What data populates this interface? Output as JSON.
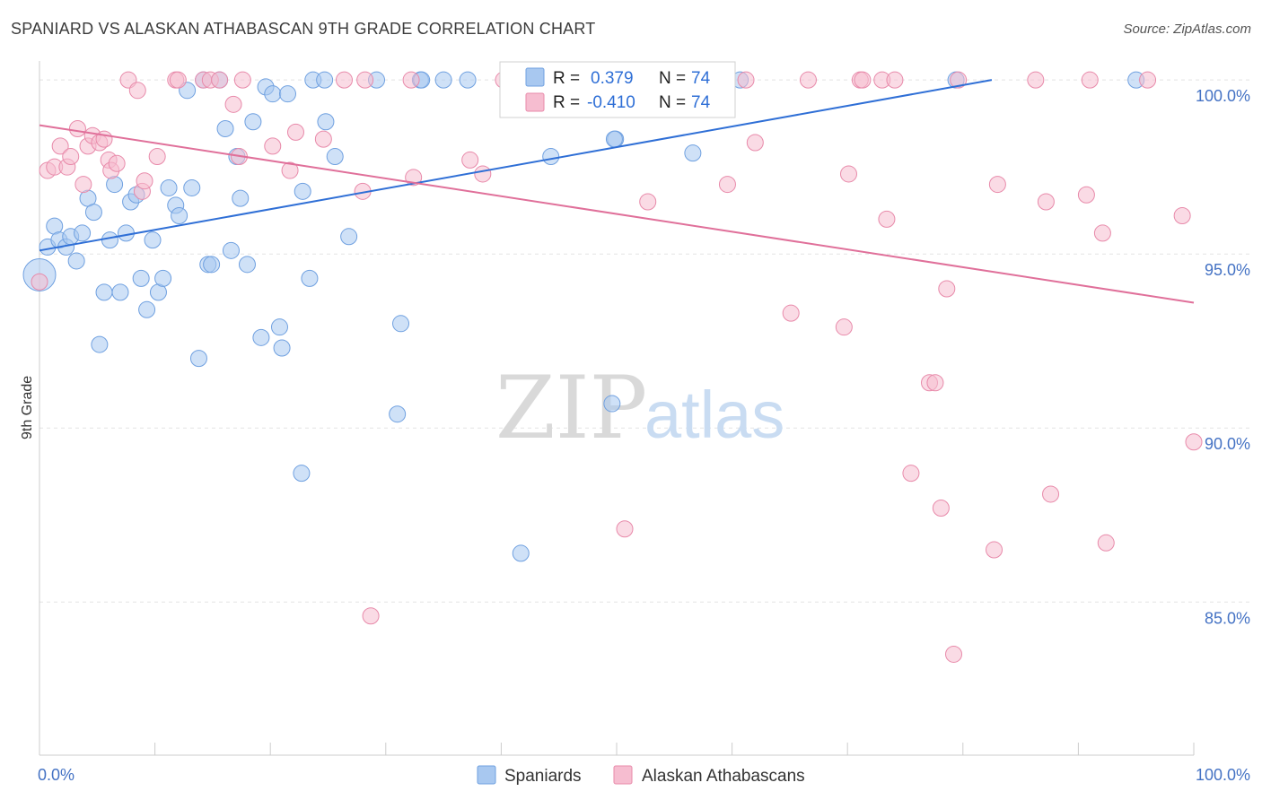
{
  "title": "SPANIARD VS ALASKAN ATHABASCAN 9TH GRADE CORRELATION CHART",
  "source": "Source: ZipAtlas.com",
  "watermark": {
    "zip": "ZIP",
    "atlas": "atlas"
  },
  "legend_box": {
    "rows": [
      {
        "r_label": "R =",
        "r_value": "0.379",
        "n_label": "N =",
        "n_value": "74",
        "color": "#a8c8f0",
        "border": "#6fa0e0"
      },
      {
        "r_label": "R =",
        "r_value": "-0.410",
        "n_label": "N =",
        "n_value": "74",
        "color": "#f6bdd0",
        "border": "#e88aaa"
      }
    ]
  },
  "chart_data": {
    "type": "scatter",
    "title": "SPANIARD VS ALASKAN ATHABASCAN 9TH GRADE CORRELATION CHART",
    "xlabel": "",
    "ylabel": "9th Grade",
    "xlim": [
      0,
      100
    ],
    "ylim": [
      80.6,
      100.7
    ],
    "x_tick_labels": [
      {
        "value": 0,
        "label": "0.0%"
      },
      {
        "value": 100,
        "label": "100.0%"
      }
    ],
    "y_tick_labels": [
      {
        "value": 100,
        "label": "100.0%"
      },
      {
        "value": 95,
        "label": "95.0%"
      },
      {
        "value": 90,
        "label": "90.0%"
      },
      {
        "value": 85,
        "label": "85.0%"
      }
    ],
    "grid": true,
    "legend_placement": "bottom",
    "series": [
      {
        "name": "Spaniards",
        "color": "#a8c8f0",
        "stroke": "#6fa0e0",
        "trend_color": "#2f6fd6",
        "trend": [
          [
            0,
            95.1
          ],
          [
            82.5,
            100.0
          ]
        ],
        "points": [
          [
            0,
            94.4
          ],
          [
            0.7,
            95.2
          ],
          [
            1.3,
            95.8
          ],
          [
            1.7,
            95.4
          ],
          [
            2.3,
            95.2
          ],
          [
            2.7,
            95.5
          ],
          [
            3.2,
            94.8
          ],
          [
            3.7,
            95.6
          ],
          [
            4.2,
            96.6
          ],
          [
            4.7,
            96.2
          ],
          [
            5.2,
            92.4
          ],
          [
            5.6,
            93.9
          ],
          [
            6.1,
            95.4
          ],
          [
            6.5,
            97.0
          ],
          [
            7.0,
            93.9
          ],
          [
            7.5,
            95.6
          ],
          [
            7.9,
            96.5
          ],
          [
            8.4,
            96.7
          ],
          [
            8.8,
            94.3
          ],
          [
            9.3,
            93.4
          ],
          [
            9.8,
            95.4
          ],
          [
            10.3,
            93.9
          ],
          [
            10.7,
            94.3
          ],
          [
            11.2,
            96.9
          ],
          [
            11.8,
            96.4
          ],
          [
            12.1,
            96.1
          ],
          [
            12.8,
            99.7
          ],
          [
            13.2,
            96.9
          ],
          [
            13.8,
            92.0
          ],
          [
            14.2,
            100.0
          ],
          [
            14.6,
            94.7
          ],
          [
            14.9,
            94.7
          ],
          [
            15.6,
            100.0
          ],
          [
            16.1,
            98.6
          ],
          [
            16.6,
            95.1
          ],
          [
            17.1,
            97.8
          ],
          [
            17.4,
            96.6
          ],
          [
            18.0,
            94.7
          ],
          [
            18.5,
            98.8
          ],
          [
            19.2,
            92.6
          ],
          [
            19.6,
            99.8
          ],
          [
            20.2,
            99.6
          ],
          [
            20.8,
            92.9
          ],
          [
            21.0,
            92.3
          ],
          [
            21.5,
            99.6
          ],
          [
            22.7,
            88.7
          ],
          [
            22.8,
            96.8
          ],
          [
            23.4,
            94.3
          ],
          [
            23.7,
            100.0
          ],
          [
            24.7,
            100.0
          ],
          [
            24.8,
            98.8
          ],
          [
            25.6,
            97.8
          ],
          [
            26.8,
            95.5
          ],
          [
            29.2,
            100.0
          ],
          [
            31.3,
            93.0
          ],
          [
            31.0,
            90.4
          ],
          [
            33.0,
            100.0
          ],
          [
            33.1,
            100.0
          ],
          [
            35.0,
            100.0
          ],
          [
            37.1,
            100.0
          ],
          [
            41.0,
            100.0
          ],
          [
            41.7,
            86.4
          ],
          [
            44.0,
            100.0
          ],
          [
            44.3,
            97.8
          ],
          [
            49.9,
            98.3
          ],
          [
            49.8,
            98.3
          ],
          [
            49.6,
            90.7
          ],
          [
            52.0,
            100.0
          ],
          [
            53.6,
            100.0
          ],
          [
            56.6,
            97.9
          ],
          [
            58.0,
            100.0
          ],
          [
            60.7,
            100.0
          ],
          [
            79.4,
            100.0
          ],
          [
            95.0,
            100.0
          ]
        ]
      },
      {
        "name": "Alaskan Athabascans",
        "color": "#f6bdd0",
        "stroke": "#e88aaa",
        "trend_color": "#e0709a",
        "trend": [
          [
            0,
            98.7
          ],
          [
            100,
            93.6
          ]
        ],
        "points": [
          [
            0,
            94.2
          ],
          [
            0.7,
            97.4
          ],
          [
            1.3,
            97.5
          ],
          [
            1.8,
            98.1
          ],
          [
            2.4,
            97.5
          ],
          [
            2.7,
            97.8
          ],
          [
            3.3,
            98.6
          ],
          [
            3.8,
            97.0
          ],
          [
            4.2,
            98.1
          ],
          [
            4.6,
            98.4
          ],
          [
            5.2,
            98.2
          ],
          [
            5.6,
            98.3
          ],
          [
            6.0,
            97.7
          ],
          [
            6.2,
            97.4
          ],
          [
            6.7,
            97.6
          ],
          [
            7.7,
            100.0
          ],
          [
            8.5,
            99.7
          ],
          [
            8.9,
            96.8
          ],
          [
            9.1,
            97.1
          ],
          [
            10.2,
            97.8
          ],
          [
            11.8,
            100.0
          ],
          [
            12.0,
            100.0
          ],
          [
            14.2,
            100.0
          ],
          [
            14.8,
            100.0
          ],
          [
            15.6,
            100.0
          ],
          [
            16.8,
            99.3
          ],
          [
            17.3,
            97.8
          ],
          [
            17.6,
            100.0
          ],
          [
            20.2,
            98.1
          ],
          [
            21.7,
            97.4
          ],
          [
            22.2,
            98.5
          ],
          [
            24.6,
            98.3
          ],
          [
            26.4,
            100.0
          ],
          [
            28.0,
            96.8
          ],
          [
            28.2,
            100.0
          ],
          [
            28.7,
            84.6
          ],
          [
            32.2,
            100.0
          ],
          [
            32.4,
            97.2
          ],
          [
            37.3,
            97.7
          ],
          [
            38.4,
            97.3
          ],
          [
            40.2,
            100.0
          ],
          [
            50.7,
            87.1
          ],
          [
            52.7,
            96.5
          ],
          [
            59.6,
            97.0
          ],
          [
            61.2,
            100.0
          ],
          [
            62.0,
            98.2
          ],
          [
            65.1,
            93.3
          ],
          [
            66.6,
            100.0
          ],
          [
            69.7,
            92.9
          ],
          [
            70.1,
            97.3
          ],
          [
            71.1,
            100.0
          ],
          [
            71.3,
            100.0
          ],
          [
            73.0,
            100.0
          ],
          [
            73.4,
            96.0
          ],
          [
            74.1,
            100.0
          ],
          [
            75.5,
            88.7
          ],
          [
            77.1,
            91.3
          ],
          [
            77.6,
            91.3
          ],
          [
            78.1,
            87.7
          ],
          [
            78.6,
            94.0
          ],
          [
            79.2,
            83.5
          ],
          [
            79.6,
            100.0
          ],
          [
            82.7,
            86.5
          ],
          [
            83.0,
            97.0
          ],
          [
            86.3,
            100.0
          ],
          [
            87.2,
            96.5
          ],
          [
            87.6,
            88.1
          ],
          [
            90.7,
            96.7
          ],
          [
            91.0,
            100.0
          ],
          [
            92.1,
            95.6
          ],
          [
            92.4,
            86.7
          ],
          [
            96.0,
            100.0
          ],
          [
            99.0,
            96.1
          ],
          [
            100,
            89.6
          ]
        ]
      }
    ]
  }
}
